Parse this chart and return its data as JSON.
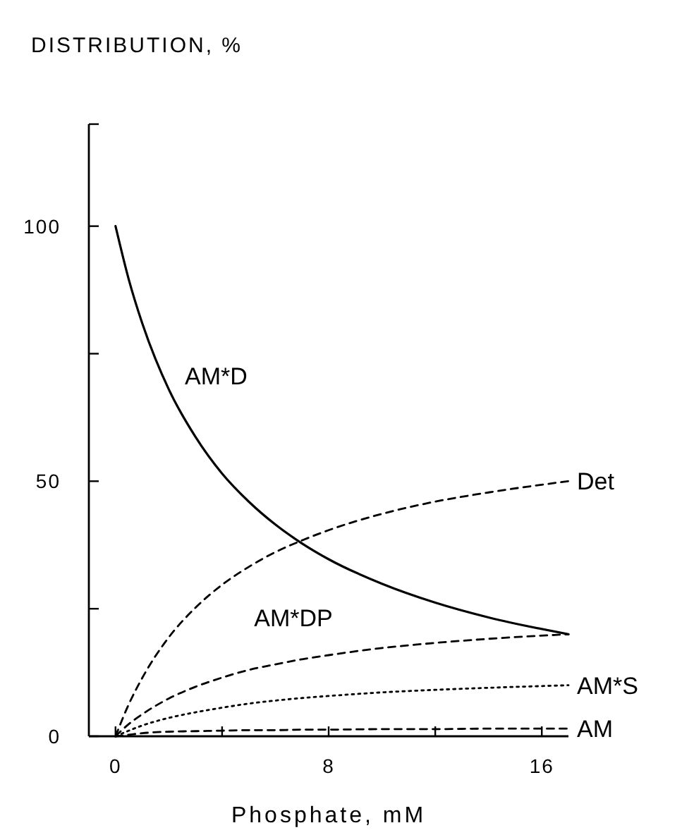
{
  "chart_data": {
    "type": "line",
    "ylabel": "DISTRIBUTION, %",
    "xlabel": "Phosphate, mM",
    "x": [
      0,
      0.5,
      1,
      2,
      3,
      4,
      5,
      6,
      7,
      8,
      10,
      12,
      14,
      17
    ],
    "series": [
      {
        "name": "AM*D",
        "color": "#000000",
        "line_style": "solid",
        "values": [
          100,
          89.5,
          81,
          68,
          58.7,
          51.5,
          46,
          41.5,
          37.8,
          34.7,
          29.9,
          26.2,
          23.3,
          20
        ]
      },
      {
        "name": "Det",
        "color": "#000000",
        "line_style": "dashed",
        "values": [
          0,
          6.3,
          11.4,
          19.4,
          25.2,
          29.7,
          33.2,
          36.1,
          38.4,
          40.4,
          43.6,
          46,
          47.8,
          50
        ]
      },
      {
        "name": "AM*DP",
        "color": "#000000",
        "line_style": "dashed",
        "values": [
          0,
          2.4,
          4.3,
          7.4,
          9.7,
          11.5,
          13,
          14.1,
          15.1,
          15.9,
          17.3,
          18.3,
          19.1,
          20
        ]
      },
      {
        "name": "AM*S",
        "color": "#000000",
        "line_style": "dotted",
        "values": [
          0,
          1.1,
          2.1,
          3.6,
          4.7,
          5.6,
          6.4,
          7,
          7.5,
          7.9,
          8.6,
          9.1,
          9.5,
          10
        ]
      },
      {
        "name": "AM",
        "color": "#000000",
        "line_style": "dashed",
        "values": [
          0,
          0.3,
          0.6,
          0.9,
          1,
          1.1,
          1.2,
          1.2,
          1.3,
          1.3,
          1.4,
          1.4,
          1.5,
          1.5
        ]
      }
    ],
    "xlim": [
      -1,
      17
    ],
    "xticks": [
      0,
      {
        "value": 4,
        "label": null
      },
      8,
      {
        "value": 12,
        "label": null
      },
      16
    ],
    "ylim": [
      0,
      120
    ],
    "yticks": [
      0,
      {
        "value": 25,
        "label": null
      },
      50,
      {
        "value": 75,
        "label": null
      },
      100
    ]
  }
}
